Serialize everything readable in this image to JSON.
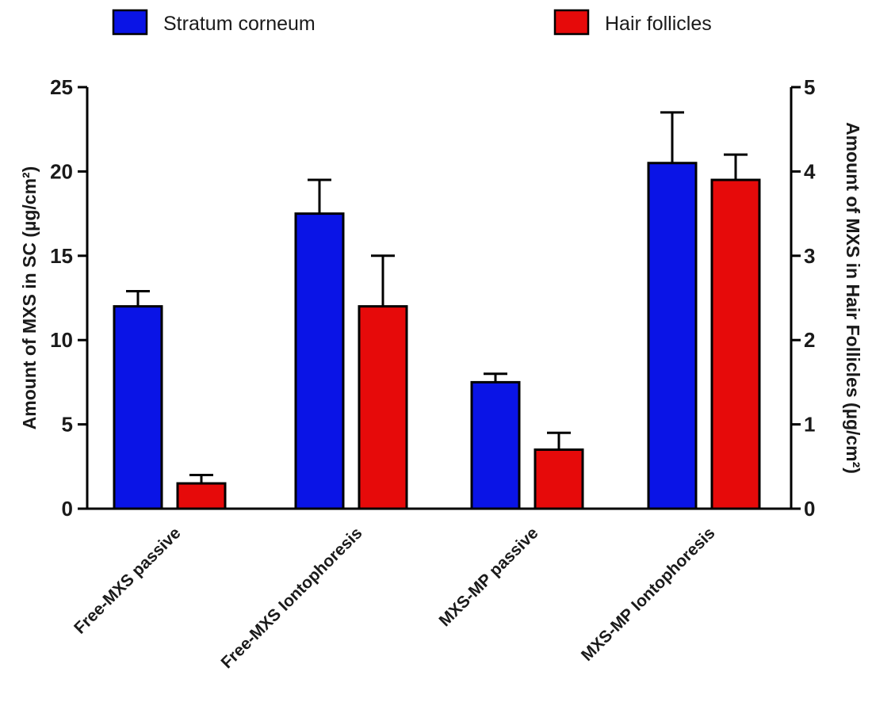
{
  "chart_data": {
    "type": "bar",
    "categories": [
      "Free-MXS passive",
      "Free-MXS  Iontophoresis",
      "MXS-MP passive",
      "MXS-MP Iontophoresis"
    ],
    "series": [
      {
        "name": "Stratum corneum",
        "axis": "left",
        "color": "#0a14e6",
        "values": [
          12.0,
          17.5,
          7.5,
          20.5
        ],
        "error_upper": [
          0.9,
          2.0,
          0.5,
          3.0
        ]
      },
      {
        "name": "Hair follicles",
        "axis": "right",
        "color": "#e60a0a",
        "values": [
          0.3,
          2.4,
          0.7,
          3.9
        ],
        "error_upper": [
          0.1,
          0.6,
          0.2,
          0.3
        ]
      }
    ],
    "ylabel": "Amount of MXS in SC (µg/cm²)",
    "y2label": "Amount of MXS in Hair Follicles (µg/cm²)",
    "ylim": [
      0,
      25
    ],
    "y2lim": [
      0,
      5
    ],
    "yticks": [
      "0",
      "5",
      "10",
      "15",
      "20",
      "25"
    ],
    "y2ticks": [
      "0",
      "1",
      "2",
      "3",
      "4",
      "5"
    ],
    "legend_position": "top",
    "grid": false
  }
}
